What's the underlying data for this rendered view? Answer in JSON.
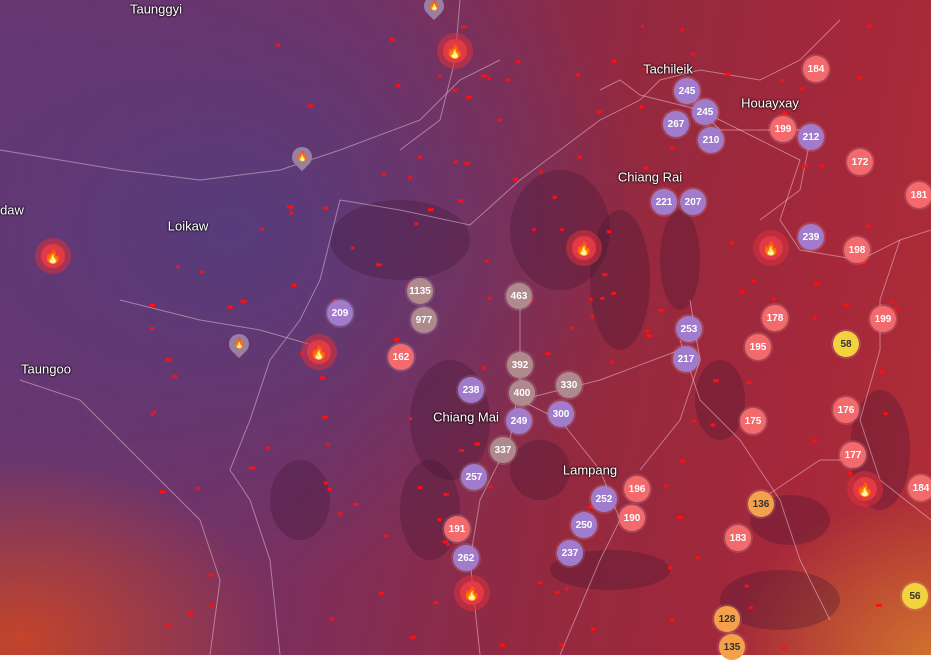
{
  "colors": {
    "very_unhealthy": "#a27ccc",
    "hazardous": "#ae8a8c",
    "unhealthy": "#f26a6c",
    "sensitive": "#f5a04a",
    "moderate": "#f3d23e",
    "fire": "#e23a44"
  },
  "cities": [
    "Taunggyi",
    "Loikaw",
    "daw",
    "Taungoo",
    "Tachileik",
    "Houayxay",
    "Chiang Rai",
    "Chiang Mai",
    "Lampang"
  ],
  "stations": [
    {
      "value": "184",
      "level": "unhealthy"
    },
    {
      "value": "245",
      "level": "very_unhealthy"
    },
    {
      "value": "245",
      "level": "very_unhealthy"
    },
    {
      "value": "267",
      "level": "very_unhealthy"
    },
    {
      "value": "210",
      "level": "very_unhealthy"
    },
    {
      "value": "199",
      "level": "unhealthy"
    },
    {
      "value": "212",
      "level": "very_unhealthy"
    },
    {
      "value": "172",
      "level": "unhealthy"
    },
    {
      "value": "181",
      "level": "unhealthy"
    },
    {
      "value": "221",
      "level": "very_unhealthy"
    },
    {
      "value": "207",
      "level": "very_unhealthy"
    },
    {
      "value": "239",
      "level": "very_unhealthy"
    },
    {
      "value": "198",
      "level": "unhealthy"
    },
    {
      "value": "209",
      "level": "very_unhealthy"
    },
    {
      "value": "1135",
      "level": "hazardous"
    },
    {
      "value": "977",
      "level": "hazardous"
    },
    {
      "value": "463",
      "level": "hazardous"
    },
    {
      "value": "162",
      "level": "unhealthy"
    },
    {
      "value": "392",
      "level": "hazardous"
    },
    {
      "value": "400",
      "level": "hazardous"
    },
    {
      "value": "330",
      "level": "hazardous"
    },
    {
      "value": "238",
      "level": "very_unhealthy"
    },
    {
      "value": "249",
      "level": "very_unhealthy"
    },
    {
      "value": "300",
      "level": "very_unhealthy"
    },
    {
      "value": "337",
      "level": "hazardous"
    },
    {
      "value": "253",
      "level": "very_unhealthy"
    },
    {
      "value": "217",
      "level": "very_unhealthy"
    },
    {
      "value": "178",
      "level": "unhealthy"
    },
    {
      "value": "195",
      "level": "unhealthy"
    },
    {
      "value": "199",
      "level": "unhealthy"
    },
    {
      "value": "58",
      "level": "moderate"
    },
    {
      "value": "175",
      "level": "unhealthy"
    },
    {
      "value": "176",
      "level": "unhealthy"
    },
    {
      "value": "177",
      "level": "unhealthy"
    },
    {
      "value": "184",
      "level": "unhealthy"
    },
    {
      "value": "136",
      "level": "sensitive"
    },
    {
      "value": "183",
      "level": "unhealthy"
    },
    {
      "value": "56",
      "level": "moderate"
    },
    {
      "value": "128",
      "level": "sensitive"
    },
    {
      "value": "135",
      "level": "sensitive"
    },
    {
      "value": "257",
      "level": "very_unhealthy"
    },
    {
      "value": "252",
      "level": "very_unhealthy"
    },
    {
      "value": "196",
      "level": "unhealthy"
    },
    {
      "value": "190",
      "level": "unhealthy"
    },
    {
      "value": "250",
      "level": "very_unhealthy"
    },
    {
      "value": "191",
      "level": "unhealthy"
    },
    {
      "value": "262",
      "level": "very_unhealthy"
    },
    {
      "value": "237",
      "level": "very_unhealthy"
    }
  ],
  "fire_icon": "flame-icon"
}
